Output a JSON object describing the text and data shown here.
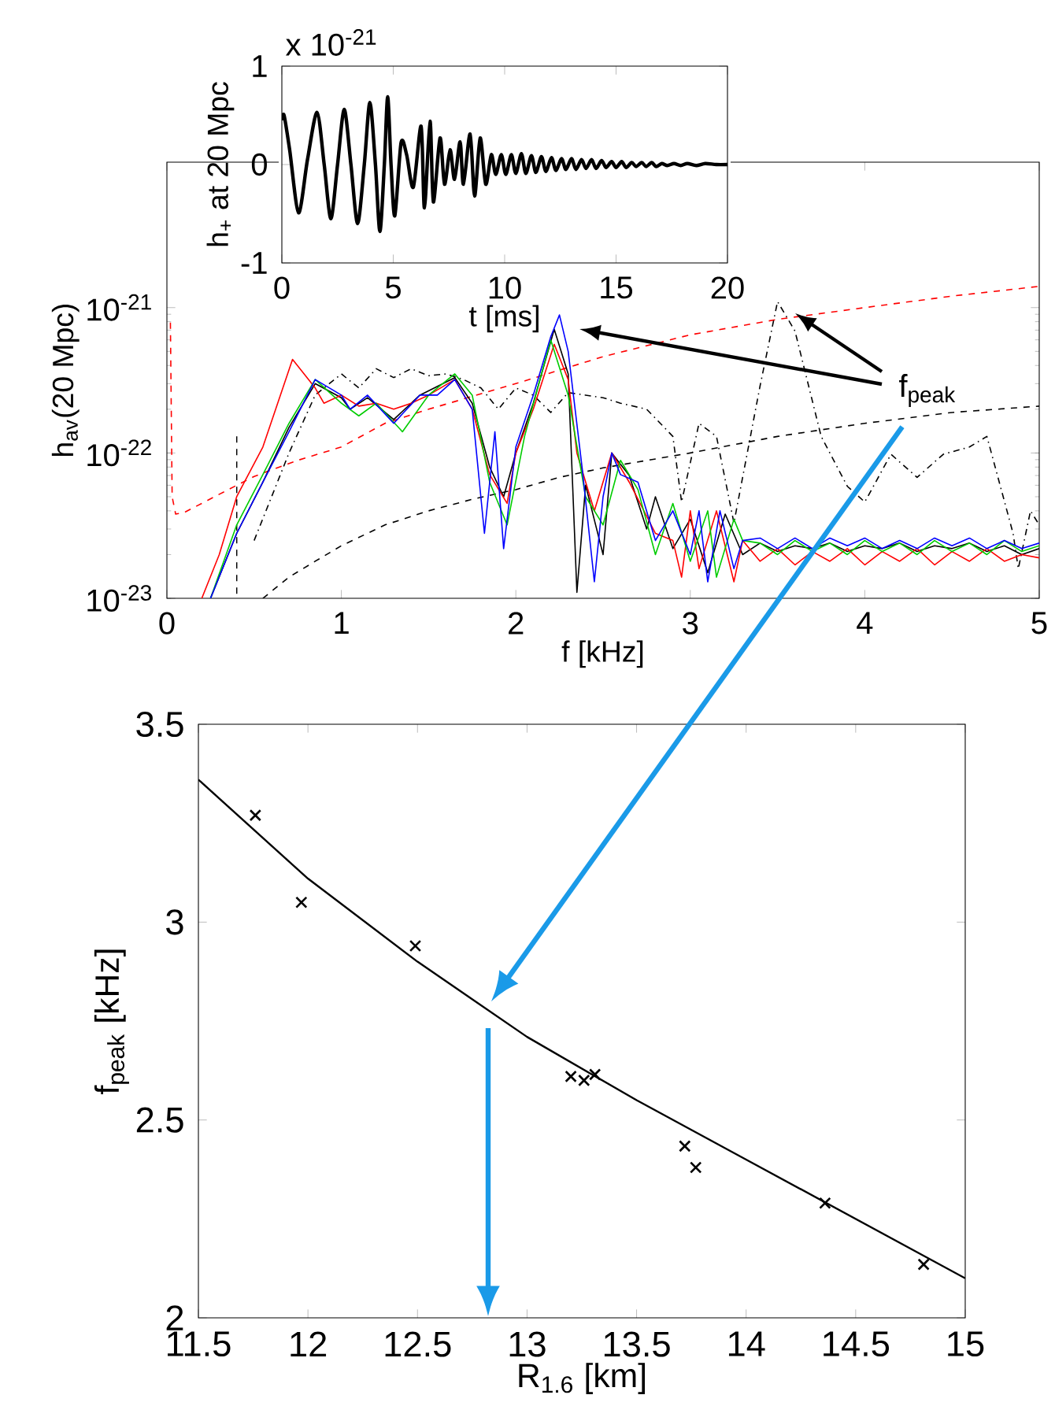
{
  "chart_data": [
    {
      "type": "line",
      "xlabel": "t [ms]",
      "ylabel": "h$_{+}$ at 20 Mpc",
      "annotations": [
        "x 10$^{-21}$"
      ],
      "xlim": [
        0,
        20
      ],
      "ylim": [
        -1,
        1
      ],
      "xticks": [
        0,
        5,
        10,
        15,
        20
      ],
      "yticks": [
        -1,
        0,
        1
      ],
      "series": [
        {
          "color": "#000000",
          "x": [
            0,
            0.1,
            0.35,
            0.75,
            1.15,
            1.58,
            1.9,
            2.2,
            2.5,
            2.8,
            3.1,
            3.4,
            3.7,
            3.95,
            4.2,
            4.4,
            4.6,
            4.75,
            4.9,
            5.07,
            5.35,
            5.6,
            5.9,
            6.25,
            6.4,
            6.65,
            6.8,
            7.1,
            7.3,
            7.55,
            7.75,
            8.0,
            8.15,
            8.45,
            8.65,
            8.9,
            9.15,
            9.4,
            9.6,
            9.85,
            10.05,
            10.3,
            10.5,
            10.75,
            10.95,
            11.2,
            11.4,
            11.65,
            11.85,
            12.1,
            12.3,
            12.55,
            12.75,
            13.0,
            13.2,
            13.45,
            13.65,
            13.9,
            14.1,
            14.35,
            14.55,
            14.8,
            15.0,
            15.25,
            15.45,
            15.7,
            15.9,
            16.15,
            16.35,
            16.6,
            16.8,
            17.05,
            17.3,
            17.6,
            17.9,
            18.2,
            18.6,
            19.0,
            19.5,
            20
          ],
          "values": [
            0.45,
            0.5,
            0.15,
            -0.49,
            0.05,
            0.53,
            0,
            -0.55,
            0,
            0.56,
            0,
            -0.6,
            0,
            0.63,
            0,
            -0.68,
            0,
            0.69,
            0,
            -0.52,
            0.22,
            0.1,
            -0.23,
            0.39,
            -0.44,
            0.44,
            -0.38,
            0.27,
            -0.2,
            0.15,
            -0.15,
            0.23,
            -0.2,
            0.31,
            -0.32,
            0.27,
            -0.2,
            0.1,
            -0.1,
            0.1,
            -0.1,
            0.1,
            -0.09,
            0.11,
            -0.09,
            0.09,
            -0.08,
            0.08,
            -0.07,
            0.07,
            -0.06,
            0.06,
            -0.05,
            0.06,
            -0.05,
            0.05,
            -0.04,
            0.05,
            -0.04,
            0.04,
            -0.03,
            0.03,
            -0.03,
            0.03,
            -0.03,
            0.02,
            -0.02,
            0.02,
            -0.02,
            0.02,
            -0.02,
            0.01,
            -0.01,
            0.01,
            -0.01,
            0.01,
            -0.01,
            0.01,
            0,
            0
          ]
        }
      ]
    },
    {
      "type": "line",
      "xlabel": "f [kHz]",
      "ylabel": "h$_{av}$(20 Mpc)",
      "annotations": [
        "f$_{peak}$"
      ],
      "log": "y",
      "xlim": [
        0,
        5
      ],
      "ylim": [
        1e-23,
        1e-20
      ],
      "xticks": [
        0,
        1,
        2,
        3,
        4,
        5
      ],
      "yticks": [
        {
          "value": 1e-23,
          "label": "10$^{-23}$"
        },
        {
          "value": 1e-22,
          "label": "10$^{-22}$"
        },
        {
          "value": 1e-21,
          "label": "10$^{-21}$"
        }
      ],
      "series": [
        {
          "color": "#ff0000",
          "line_style": "dashed",
          "x": [
            0.02,
            0.03,
            0.05,
            0.1,
            0.2,
            0.3,
            0.5,
            0.75,
            1,
            1.25,
            1.5,
            2,
            2.5,
            3,
            3.5,
            4,
            4.5,
            5
          ],
          "values": [
            7.9e-22,
            5e-23,
            3.8e-23,
            3.9e-23,
            4.5e-23,
            5.2e-23,
            6.9e-23,
            8.9e-23,
            1.1e-22,
            1.6e-22,
            2e-22,
            3e-22,
            4.6e-22,
            6.5e-22,
            8.3e-22,
            1e-21,
            1.2e-21,
            1.4e-21
          ]
        },
        {
          "color": "#000000",
          "line_style": "dashed",
          "x": [
            0.55,
            0.7,
            0.85,
            1,
            1.25,
            1.5,
            1.75,
            2,
            2.25,
            2.5,
            3,
            3.5,
            4,
            4.5,
            5
          ],
          "values": [
            1e-23,
            1.4e-23,
            1.8e-23,
            2.3e-23,
            3.2e-23,
            4e-23,
            4.8e-23,
            5.6e-23,
            6.8e-23,
            7.9e-23,
            1e-22,
            1.3e-22,
            1.6e-22,
            1.9e-22,
            2.1e-22
          ]
        },
        {
          "color": "#000000",
          "line_style": "dashed",
          "x": [
            0.4,
            0.4
          ],
          "values": [
            1.3e-22,
            1e-23
          ]
        },
        {
          "color": "#000000",
          "line_style": "dashdot",
          "x": [
            0.5,
            0.7,
            0.85,
            1.0,
            1.1,
            1.2,
            1.3,
            1.4,
            1.5,
            1.6,
            1.7,
            1.8,
            1.9,
            2.0,
            2.1,
            2.2,
            2.3,
            2.4,
            2.5,
            2.6,
            2.75,
            2.9,
            2.95,
            3.05,
            3.15,
            3.25,
            3.4,
            3.5,
            3.6,
            3.75,
            3.9,
            4.0,
            4.15,
            4.3,
            4.45,
            4.6,
            4.7,
            4.85,
            4.88,
            4.95,
            5.0
          ],
          "values": [
            2.5e-23,
            1e-22,
            2.5e-22,
            3.5e-22,
            2.8e-22,
            3.8e-22,
            3.3e-22,
            3.8e-22,
            3.4e-22,
            3.5e-22,
            3.2e-22,
            2.8e-22,
            2e-22,
            2.8e-22,
            2.5e-22,
            1.9e-22,
            2.6e-22,
            2.5e-22,
            2.4e-22,
            2.2e-22,
            2e-22,
            1.3e-22,
            4.6e-23,
            1.6e-22,
            1.3e-22,
            3.3e-23,
            2.9e-22,
            1.1e-21,
            6.9e-22,
            1.3e-22,
            5.9e-23,
            4.6e-23,
            9.8e-23,
            6.8e-23,
            9.8e-23,
            1.1e-22,
            1.3e-22,
            2.8e-23,
            1.6e-23,
            4e-23,
            3.2e-23
          ]
        },
        {
          "color": "#000000",
          "x": [
            0.25,
            0.4,
            0.55,
            0.7,
            0.85,
            1.0,
            1.05,
            1.15,
            1.3,
            1.45,
            1.65,
            1.75,
            1.85,
            1.93,
            2.0,
            2.1,
            2.22,
            2.3,
            2.35,
            2.4,
            2.5,
            2.55,
            2.65,
            2.75,
            2.8,
            2.9,
            3.0,
            3.1,
            3.2,
            3.3,
            3.4,
            3.5,
            3.6,
            3.7,
            3.8,
            3.9,
            4.0,
            4.1,
            4.2,
            4.3,
            4.4,
            4.5,
            4.6,
            4.7,
            4.8,
            4.9,
            5.0
          ],
          "values": [
            1e-23,
            2.8e-23,
            6.3e-23,
            1.5e-22,
            3e-22,
            2.4e-22,
            2e-22,
            2.4e-22,
            1.7e-22,
            2.5e-22,
            3.3e-22,
            2.2e-22,
            8e-23,
            5e-23,
            1e-22,
            2.2e-22,
            7.1e-22,
            3.5e-22,
            1.1e-23,
            6e-23,
            2e-23,
            1e-22,
            7e-23,
            3e-23,
            5e-23,
            2.2e-23,
            3.5e-23,
            1.5e-23,
            3.8e-23,
            2e-23,
            2.4e-23,
            2.1e-23,
            2.3e-23,
            2.2e-23,
            2.4e-23,
            2.1e-23,
            2.3e-23,
            2.2e-23,
            2.4e-23,
            2.1e-23,
            2.3e-23,
            2.2e-23,
            2.4e-23,
            2.1e-23,
            2.3e-23,
            2e-23,
            2.2e-23
          ]
        },
        {
          "color": "#ff0000",
          "x": [
            0.2,
            0.3,
            0.4,
            0.55,
            0.72,
            0.85,
            0.9,
            1.0,
            1.1,
            1.2,
            1.3,
            1.4,
            1.5,
            1.65,
            1.75,
            1.85,
            1.95,
            2.0,
            2.1,
            2.22,
            2.3,
            2.35,
            2.45,
            2.55,
            2.65,
            2.8,
            2.9,
            2.95,
            3.0,
            3.05,
            3.15,
            3.25,
            3.3,
            3.4,
            3.5,
            3.6,
            3.7,
            3.8,
            3.9,
            4.0,
            4.1,
            4.2,
            4.3,
            4.4,
            4.5,
            4.6,
            4.7,
            4.8,
            4.9,
            5.0
          ],
          "values": [
            1e-23,
            2e-23,
            5e-23,
            1.1e-22,
            4.4e-22,
            2.8e-22,
            2.2e-22,
            2.5e-22,
            2.1e-22,
            2.2e-22,
            2e-22,
            2.2e-22,
            2.5e-22,
            3.2e-22,
            2e-22,
            7.1e-23,
            4.5e-23,
            1e-22,
            2e-22,
            5.6e-22,
            3.2e-22,
            1e-22,
            4e-23,
            1e-22,
            6.3e-23,
            2.8e-23,
            2.5e-23,
            1.4e-23,
            4e-23,
            1.6e-23,
            4e-23,
            1.3e-23,
            2.5e-23,
            1.8e-23,
            2.2e-23,
            1.7e-23,
            2.1e-23,
            1.8e-23,
            2.2e-23,
            1.7e-23,
            2.1e-23,
            1.8e-23,
            2.2e-23,
            1.7e-23,
            2.1e-23,
            1.8e-23,
            2.2e-23,
            1.8e-23,
            2e-23,
            1.9e-23
          ]
        },
        {
          "color": "#00cc00",
          "x": [
            0.25,
            0.4,
            0.55,
            0.7,
            0.85,
            1.0,
            1.1,
            1.2,
            1.35,
            1.5,
            1.65,
            1.75,
            1.85,
            1.95,
            2.05,
            2.2,
            2.3,
            2.4,
            2.5,
            2.6,
            2.7,
            2.8,
            2.9,
            3.0,
            3.1,
            3.15,
            3.25,
            3.3,
            3.4,
            3.5,
            3.6,
            3.7,
            3.8,
            3.9,
            4.0,
            4.1,
            4.2,
            4.3,
            4.4,
            4.5,
            4.6,
            4.7,
            4.8,
            4.9,
            5.0
          ],
          "values": [
            1e-23,
            3.2e-23,
            7.1e-23,
            1.6e-22,
            3.2e-22,
            2.2e-22,
            1.8e-22,
            2.2e-22,
            1.4e-22,
            2.5e-22,
            3.5e-22,
            2.5e-22,
            6.3e-23,
            3.2e-23,
            1.3e-22,
            6e-22,
            2.5e-22,
            5e-23,
            3.2e-23,
            8.9e-23,
            5.6e-23,
            2e-23,
            4.5e-23,
            1.8e-23,
            4e-23,
            1.4e-23,
            3.5e-23,
            2.5e-23,
            2.4e-23,
            2e-23,
            2.5e-23,
            2.1e-23,
            2.4e-23,
            2e-23,
            2.5e-23,
            2.1e-23,
            2.4e-23,
            2e-23,
            2.5e-23,
            2.1e-23,
            2.4e-23,
            2e-23,
            2.5e-23,
            2.1e-23,
            2.3e-23
          ]
        },
        {
          "color": "#0000ff",
          "x": [
            0.25,
            0.4,
            0.55,
            0.7,
            0.85,
            1.0,
            1.05,
            1.15,
            1.3,
            1.45,
            1.55,
            1.65,
            1.75,
            1.82,
            1.88,
            1.93,
            2.0,
            2.1,
            2.2,
            2.25,
            2.3,
            2.38,
            2.45,
            2.5,
            2.55,
            2.6,
            2.7,
            2.8,
            2.9,
            3.0,
            3.05,
            3.1,
            3.17,
            3.25,
            3.3,
            3.4,
            3.5,
            3.6,
            3.7,
            3.8,
            3.9,
            4.0,
            4.1,
            4.2,
            4.3,
            4.4,
            4.5,
            4.6,
            4.7,
            4.8,
            4.9,
            5.0
          ],
          "values": [
            1e-23,
            2.8e-23,
            6.3e-23,
            1.4e-22,
            3.2e-22,
            2.5e-22,
            2e-22,
            2.5e-22,
            1.6e-22,
            2.5e-22,
            2.5e-22,
            3.2e-22,
            2e-22,
            2.8e-23,
            1.4e-22,
            2.2e-23,
            1.1e-22,
            2.5e-22,
            6.3e-22,
            8.9e-22,
            5e-22,
            7.9e-23,
            1.3e-23,
            5e-23,
            1e-22,
            7.1e-23,
            6.3e-23,
            2.5e-23,
            4e-23,
            2e-23,
            4e-23,
            1.3e-23,
            4e-23,
            1.6e-23,
            2.5e-23,
            2.6e-23,
            2.2e-23,
            2.6e-23,
            2.2e-23,
            2.6e-23,
            2.3e-23,
            2.6e-23,
            2.2e-23,
            2.5e-23,
            2.2e-23,
            2.6e-23,
            2.3e-23,
            2.6e-23,
            2.2e-23,
            2.5e-23,
            2.2e-23,
            2.4e-23
          ]
        }
      ]
    },
    {
      "type": "scatter",
      "xlabel": "R$_{1.6}$ [km]",
      "ylabel": "f$_{peak}$ [kHz]",
      "xlim": [
        11.5,
        15
      ],
      "ylim": [
        2,
        3.5
      ],
      "xticks": [
        11.5,
        12,
        12.5,
        13,
        13.5,
        14,
        14.5,
        15
      ],
      "yticks": [
        2,
        2.5,
        3,
        3.5
      ],
      "series": [
        {
          "color": "#000000",
          "marker": "cross",
          "x": [
            11.76,
            11.97,
            12.49,
            13.2,
            13.26,
            13.31,
            13.72,
            13.77,
            14.36,
            14.81
          ],
          "values": [
            3.27,
            3.05,
            2.94,
            2.61,
            2.6,
            2.615,
            2.434,
            2.38,
            2.29,
            2.135
          ]
        },
        {
          "type": "line",
          "color": "#000000",
          "x": [
            11.5,
            12,
            12.5,
            13,
            13.5,
            14,
            14.5,
            15
          ],
          "values": [
            3.36,
            3.11,
            2.9,
            2.71,
            2.55,
            2.4,
            2.25,
            2.1
          ]
        }
      ]
    }
  ]
}
